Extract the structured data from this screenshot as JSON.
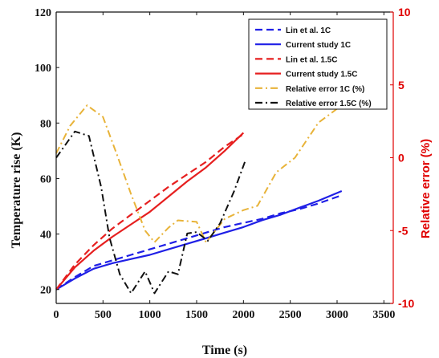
{
  "chart_data": {
    "type": "line",
    "xlabel": "Time (s)",
    "ylabel_left": "Temperature rise (K)",
    "ylabel_right": "Relative error (%)",
    "xlim": [
      0,
      3600
    ],
    "ylim_left": [
      15,
      120
    ],
    "ylim_right": [
      -10,
      10
    ],
    "x_ticks": [
      "0",
      "500",
      "1000",
      "1500",
      "2000",
      "2500",
      "3000",
      "3500"
    ],
    "y_left_ticks": [
      "20",
      "40",
      "60",
      "80",
      "100",
      "120"
    ],
    "y_right_ticks": [
      "-10",
      "-5",
      "0",
      "5",
      "10"
    ],
    "legend_position": "top-right",
    "colors": {
      "left_axis": "#111111",
      "right_axis": "#e00000"
    },
    "series": [
      {
        "name": "Lin et al. 1C",
        "axis": "left",
        "color": "#1f1fe6",
        "dash": "dashed",
        "x": [
          0,
          200,
          400,
          600,
          800,
          1000,
          1200,
          1400,
          1600,
          1800,
          2000,
          2200,
          2400,
          2600,
          2800,
          3050
        ],
        "y": [
          20,
          24.5,
          28.5,
          30.5,
          32.5,
          34.5,
          36.5,
          38.5,
          40.5,
          42.5,
          44,
          45.5,
          47.5,
          49,
          51,
          54
        ]
      },
      {
        "name": "Current study 1C",
        "axis": "left",
        "color": "#1f1fe6",
        "dash": "solid",
        "x": [
          0,
          200,
          400,
          600,
          800,
          1000,
          1200,
          1400,
          1600,
          1800,
          2000,
          2200,
          2400,
          2600,
          2800,
          3050
        ],
        "y": [
          20,
          24,
          27.5,
          29.5,
          31,
          32.5,
          34.5,
          36.5,
          38.5,
          40.5,
          42.5,
          45,
          47,
          49.5,
          52,
          55.5
        ]
      },
      {
        "name": "Lin et al. 1.5C",
        "axis": "left",
        "color": "#e61f1f",
        "dash": "dashed",
        "x": [
          0,
          200,
          400,
          600,
          800,
          1000,
          1200,
          1400,
          1600,
          1800,
          2000
        ],
        "y": [
          20,
          29,
          36,
          42,
          47,
          52,
          57,
          61.5,
          66,
          71.5,
          76
        ]
      },
      {
        "name": "Current study 1.5C",
        "axis": "left",
        "color": "#e61f1f",
        "dash": "solid",
        "x": [
          0,
          200,
          400,
          600,
          800,
          1000,
          1200,
          1400,
          1600,
          1800,
          2000
        ],
        "y": [
          20,
          28,
          34,
          39,
          43.5,
          48,
          53.5,
          59,
          64,
          70,
          76.5
        ]
      },
      {
        "name": "Relative error 1C (%)",
        "axis": "right",
        "color": "#e8b339",
        "dash": "dashdot",
        "x": [
          0,
          150,
          330,
          500,
          650,
          800,
          950,
          1050,
          1200,
          1300,
          1500,
          1600,
          1800,
          2000,
          2150,
          2350,
          2550,
          2800,
          3050
        ],
        "y": [
          0.3,
          2.2,
          3.6,
          2.8,
          0.2,
          -2.5,
          -5.0,
          -5.8,
          -4.8,
          -4.3,
          -4.4,
          -5.8,
          -4.2,
          -3.6,
          -3.3,
          -1.0,
          0,
          2.4,
          3.6
        ]
      },
      {
        "name": "Relative error 1.5C (%)",
        "axis": "right",
        "color": "#111111",
        "dash": "dashdot",
        "x": [
          0,
          200,
          350,
          480,
          570,
          680,
          800,
          950,
          1050,
          1200,
          1300,
          1400,
          1500,
          1620,
          1750,
          1900,
          2020
        ],
        "y": [
          0,
          1.8,
          1.5,
          -2.0,
          -5.5,
          -8.0,
          -9.3,
          -7.8,
          -9.3,
          -7.8,
          -8.0,
          -5.2,
          -5.1,
          -5.7,
          -4.5,
          -2.3,
          -0.2
        ]
      }
    ]
  }
}
